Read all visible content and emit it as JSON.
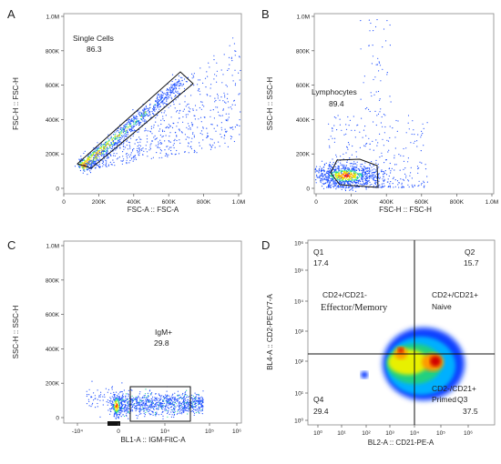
{
  "panels": {
    "A": {
      "letter": "A",
      "xlabel": "FSC-A :: FSC-A",
      "ylabel": "FSC-H :: FSC-H",
      "xticks": [
        "0",
        "200K",
        "400K",
        "600K",
        "800K",
        "1.0M"
      ],
      "yticks": [
        "0",
        "200K",
        "400K",
        "600K",
        "800K",
        "1.0M"
      ],
      "gate_name": "Single Cells",
      "gate_value": "86.3"
    },
    "B": {
      "letter": "B",
      "xlabel": "FSC-H :: FSC-H",
      "ylabel": "SSC-H :: SSC-H",
      "xticks": [
        "0",
        "200K",
        "400K",
        "600K",
        "800K",
        "1.0M"
      ],
      "yticks": [
        "0",
        "200K",
        "400K",
        "600K",
        "800K",
        "1.0M"
      ],
      "gate_name": "Lymphocytes",
      "gate_value": "89.4"
    },
    "C": {
      "letter": "C",
      "xlabel": "BL1-A :: IGM-FitC-A",
      "ylabel": "SSC-H :: SSC-H",
      "xticks": [
        "-10⁴",
        "0",
        "10⁴",
        "10⁵",
        "10⁶"
      ],
      "yticks": [
        "0",
        "200K",
        "400K",
        "600K",
        "800K",
        "1.0M"
      ],
      "gate_name": "IgM+",
      "gate_value": "29.8"
    },
    "D": {
      "letter": "D",
      "xlabel": "BL2-A :: CD21-PE-A",
      "ylabel": "BL4-A :: CD2-PECY7-A",
      "xticks": [
        "10⁰",
        "10¹",
        "10²",
        "10³",
        "10⁴",
        "10⁵",
        "10⁶"
      ],
      "yticks": [
        "10⁰",
        "10¹",
        "10²",
        "10³",
        "10⁴",
        "10⁵",
        "10⁶"
      ],
      "q1": {
        "name": "Q1",
        "value": "17.4",
        "l1": "CD2+/CD21-",
        "l2": "Effector/Memory"
      },
      "q2": {
        "name": "Q2",
        "value": "15.7",
        "l1": "CD2+/CD21+",
        "l2": "Naive"
      },
      "q3": {
        "name": "Q3",
        "value": "37.5",
        "l1": "CD2-/CD21+",
        "l2": "Primed"
      },
      "q4": {
        "name": "Q4",
        "value": "29.4"
      }
    }
  },
  "chart_data": [
    {
      "type": "scatter",
      "panel": "A",
      "title": "",
      "xlabel": "FSC-A :: FSC-A",
      "ylabel": "FSC-H :: FSC-H",
      "xlim": [
        0,
        1000000
      ],
      "ylim": [
        0,
        1000000
      ],
      "gates": [
        {
          "name": "Single Cells",
          "percent": 86.3
        }
      ]
    },
    {
      "type": "scatter",
      "panel": "B",
      "title": "",
      "xlabel": "FSC-H :: FSC-H",
      "ylabel": "SSC-H :: SSC-H",
      "xlim": [
        0,
        1000000
      ],
      "ylim": [
        0,
        1000000
      ],
      "gates": [
        {
          "name": "Lymphocytes",
          "percent": 89.4
        }
      ]
    },
    {
      "type": "scatter",
      "panel": "C",
      "title": "",
      "xlabel": "BL1-A :: IGM-FitC-A",
      "ylabel": "SSC-H :: SSC-H",
      "xscale": "biexponential",
      "ylim": [
        0,
        1000000
      ],
      "gates": [
        {
          "name": "IgM+",
          "percent": 29.8
        }
      ]
    },
    {
      "type": "heatmap",
      "panel": "D",
      "title": "",
      "xlabel": "BL2-A :: CD21-PE-A",
      "ylabel": "BL4-A :: CD2-PECY7-A",
      "xscale": "log",
      "yscale": "log",
      "xlim": [
        1,
        1000000
      ],
      "ylim": [
        1,
        1000000
      ],
      "quadrants": [
        {
          "name": "Q1",
          "percent": 17.4,
          "label": "CD2+/CD21- Effector/Memory"
        },
        {
          "name": "Q2",
          "percent": 15.7,
          "label": "CD2+/CD21+ Naive"
        },
        {
          "name": "Q3",
          "percent": 37.5,
          "label": "CD2-/CD21+ Primed"
        },
        {
          "name": "Q4",
          "percent": 29.4
        }
      ]
    }
  ]
}
